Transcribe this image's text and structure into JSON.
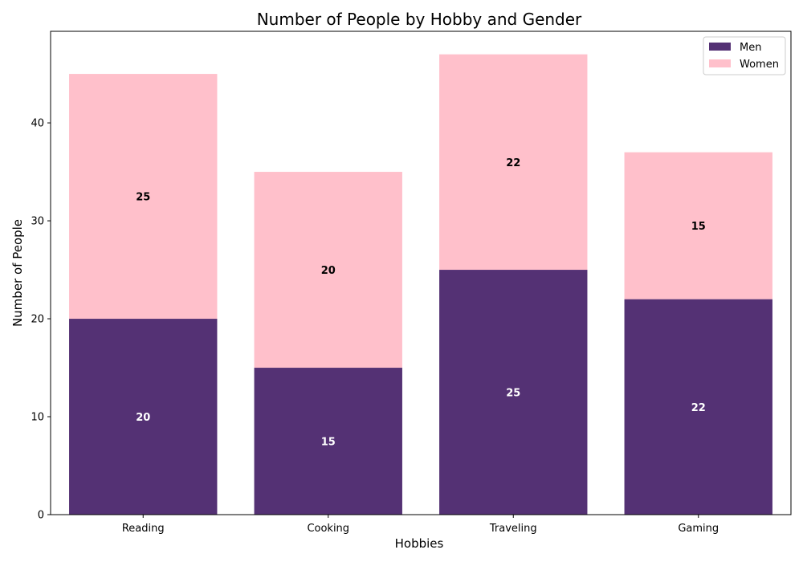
{
  "chart_data": {
    "type": "bar",
    "stacked": true,
    "title": "Number of People by Hobby and Gender",
    "xlabel": "Hobbies",
    "ylabel": "Number of People",
    "categories": [
      "Reading",
      "Cooking",
      "Traveling",
      "Gaming"
    ],
    "series": [
      {
        "name": "Men",
        "values": [
          20,
          15,
          25,
          22
        ],
        "color": "#543174",
        "label_color": "#ffffff"
      },
      {
        "name": "Women",
        "values": [
          25,
          20,
          22,
          15
        ],
        "color": "#ffc0cb",
        "label_color": "#000000"
      }
    ],
    "ylim": [
      0,
      49.35
    ],
    "yticks": [
      0,
      10,
      20,
      30,
      40
    ],
    "grid": false,
    "legend_position": "top-right"
  }
}
